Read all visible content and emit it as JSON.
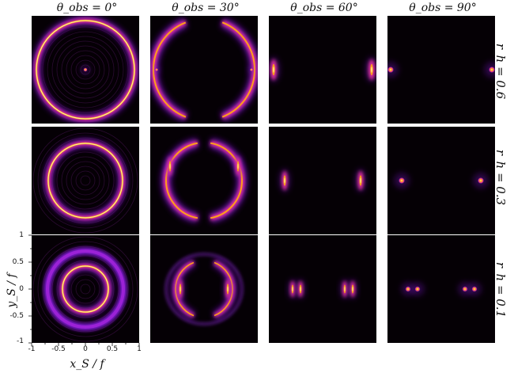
{
  "colors": {
    "ring_core": "#fff2a0",
    "ring_mid": "#ff9f1a",
    "ring_outer": "#e0329c",
    "ring_faint": "#7a19c9",
    "background": "#050005"
  },
  "columns": [
    {
      "label": "θ_obs = 0°",
      "angle": 0
    },
    {
      "label": "θ_obs = 30°",
      "angle": 30
    },
    {
      "label": "θ_obs = 60°",
      "angle": 60
    },
    {
      "label": "θ_obs = 90°",
      "angle": 90
    }
  ],
  "rows": [
    {
      "label": "r_h = 0.6",
      "rh": 0.6
    },
    {
      "label": "r_h = 0.3",
      "rh": 0.3
    },
    {
      "label": "r_h = 0.1",
      "rh": 0.1
    }
  ],
  "axes": {
    "xlabel": "x_S / f",
    "ylabel": "y_S / f",
    "xticks": [
      "-1",
      "-0.5",
      "0",
      "0.5",
      "1"
    ],
    "yticks": [
      "1",
      "0.5",
      "0",
      "-0.5",
      "-1"
    ],
    "xlim": [
      -1,
      1
    ],
    "ylim": [
      -1,
      1
    ]
  }
}
